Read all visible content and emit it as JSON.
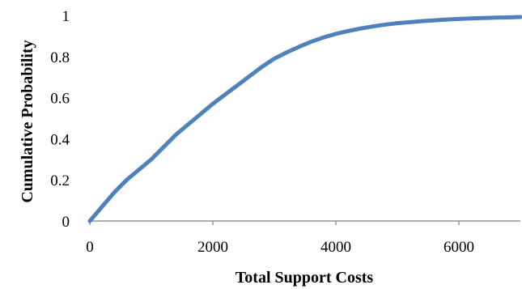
{
  "chart_data": {
    "type": "line",
    "title": "",
    "xlabel": "Total Support Costs",
    "ylabel": "Cumulative Probability",
    "xlim": [
      0,
      7000
    ],
    "ylim": [
      0,
      1
    ],
    "x_ticks": [
      "0",
      "2000",
      "4000",
      "6000"
    ],
    "y_ticks": [
      "0",
      "0.2",
      "0.4",
      "0.6",
      "0.8",
      "1"
    ],
    "grid": false,
    "legend": "none",
    "series": [
      {
        "color": "#4f81bd",
        "x": [
          0,
          200,
          400,
          600,
          800,
          1000,
          1200,
          1400,
          1600,
          1800,
          2000,
          2200,
          2400,
          2600,
          2800,
          3000,
          3200,
          3400,
          3600,
          3800,
          4000,
          4200,
          4400,
          4600,
          4800,
          5000,
          5200,
          5400,
          5600,
          5800,
          6000,
          6200,
          6400,
          6600,
          6800,
          7000
        ],
        "y": [
          0.0,
          0.07,
          0.14,
          0.2,
          0.25,
          0.3,
          0.36,
          0.42,
          0.47,
          0.52,
          0.57,
          0.615,
          0.66,
          0.705,
          0.75,
          0.79,
          0.82,
          0.847,
          0.872,
          0.893,
          0.91,
          0.924,
          0.936,
          0.946,
          0.955,
          0.962,
          0.967,
          0.972,
          0.976,
          0.98,
          0.983,
          0.985,
          0.987,
          0.989,
          0.99,
          0.992
        ]
      }
    ]
  }
}
